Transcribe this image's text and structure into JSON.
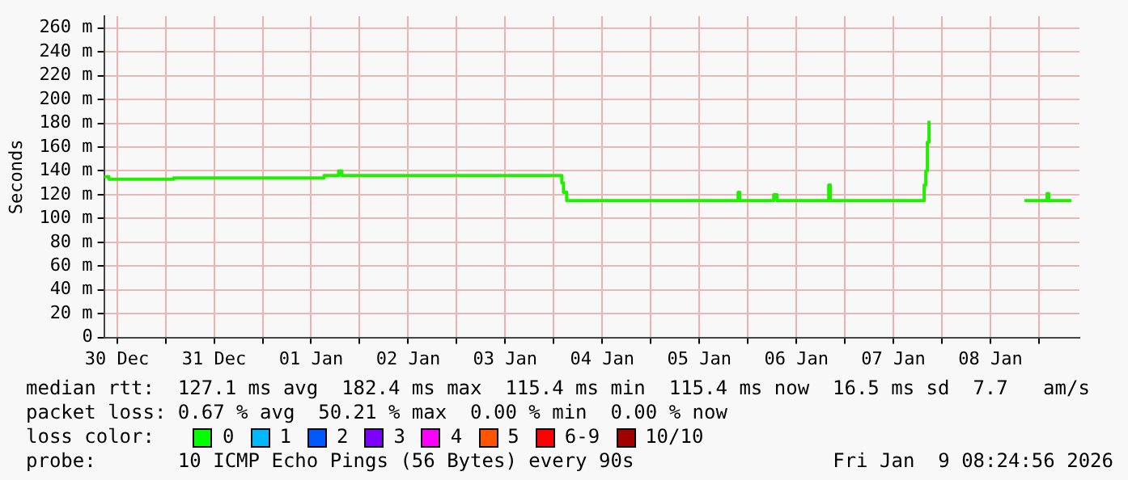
{
  "chart_data": {
    "type": "step",
    "ylabel": "Seconds",
    "x": [
      "2025-12-29T20:48",
      "2025-12-29T22:00",
      "2025-12-30T14:00",
      "2026-01-01T03:12",
      "2026-01-01T06:48",
      "2026-01-01T07:36",
      "2026-01-03T13:36",
      "2026-01-03T14:00",
      "2026-01-03T14:24",
      "2026-01-03T15:12",
      "2026-01-05T09:36",
      "2026-01-05T10:00",
      "2026-01-05T18:24",
      "2026-01-05T19:12",
      "2026-01-06T08:00",
      "2026-01-06T08:24",
      "2026-01-07T07:12",
      "2026-01-07T07:36",
      "2026-01-07T08:00",
      "2026-01-07T08:24",
      "2026-01-07T08:48",
      "2026-01-07T09:12",
      "2026-01-08T08:24",
      "2026-01-08T14:00",
      "2026-01-08T14:24",
      "2026-01-08T20:00"
    ],
    "series": [
      {
        "color": "#22ee00",
        "values": [
          135,
          133,
          134,
          136,
          140,
          136,
          136,
          130,
          122,
          115,
          122,
          115,
          120,
          115,
          128,
          115,
          115,
          128,
          140,
          164,
          182,
          null,
          115,
          121,
          115,
          115
        ]
      }
    ],
    "xlim": [
      "2025-12-29T20:48",
      "2026-01-08T22:00"
    ],
    "xticks": [
      {
        "value": "2025-12-30",
        "label": "30 Dec"
      },
      {
        "value": "2025-12-30T12:00",
        "label": null
      },
      {
        "value": "2025-12-31",
        "label": "31 Dec"
      },
      {
        "value": "2025-12-31T12:00",
        "label": null
      },
      {
        "value": "2026-01-01",
        "label": "01 Jan"
      },
      {
        "value": "2026-01-01T12:00",
        "label": null
      },
      {
        "value": "2026-01-02",
        "label": "02 Jan"
      },
      {
        "value": "2026-01-02T12:00",
        "label": null
      },
      {
        "value": "2026-01-03",
        "label": "03 Jan"
      },
      {
        "value": "2026-01-03T12:00",
        "label": null
      },
      {
        "value": "2026-01-04",
        "label": "04 Jan"
      },
      {
        "value": "2026-01-04T12:00",
        "label": null
      },
      {
        "value": "2026-01-05",
        "label": "05 Jan"
      },
      {
        "value": "2026-01-05T12:00",
        "label": null
      },
      {
        "value": "2026-01-06",
        "label": "06 Jan"
      },
      {
        "value": "2026-01-06T12:00",
        "label": null
      },
      {
        "value": "2026-01-07",
        "label": "07 Jan"
      },
      {
        "value": "2026-01-07T12:00",
        "label": null
      },
      {
        "value": "2026-01-08",
        "label": "08 Jan"
      },
      {
        "value": "2026-01-08T12:00",
        "label": null
      }
    ],
    "ylim": [
      0,
      270
    ],
    "yticks": [
      {
        "value": 0,
        "label": "0"
      },
      {
        "value": 20,
        "label": "20 m"
      },
      {
        "value": 40,
        "label": "40 m"
      },
      {
        "value": 60,
        "label": "60 m"
      },
      {
        "value": 80,
        "label": "80 m"
      },
      {
        "value": 100,
        "label": "100 m"
      },
      {
        "value": 120,
        "label": "120 m"
      },
      {
        "value": 140,
        "label": "140 m"
      },
      {
        "value": 160,
        "label": "160 m"
      },
      {
        "value": 180,
        "label": "180 m"
      },
      {
        "value": 200,
        "label": "200 m"
      },
      {
        "value": 220,
        "label": "220 m"
      },
      {
        "value": 240,
        "label": "240 m"
      },
      {
        "value": 260,
        "label": "260 m"
      }
    ],
    "grid": true,
    "legend": false,
    "marker": "none",
    "line_style": "solid",
    "annotations": [
      "median rtt:  127.1 ms avg  182.4 ms max  115.4 ms min  115.4 ms now  16.5 ms sd  7.7   am/s",
      "packet loss: 0.67 % avg  50.21 % max  0.00 % min  0.00 % now",
      "loss color:",
      "0",
      "1",
      "2",
      "3",
      "4",
      "5",
      "6-9",
      "10/10",
      "probe:       10 ICMP Echo Pings (56 Bytes) every 90s",
      "Fri Jan  9 08:24:56 2026"
    ]
  }
}
